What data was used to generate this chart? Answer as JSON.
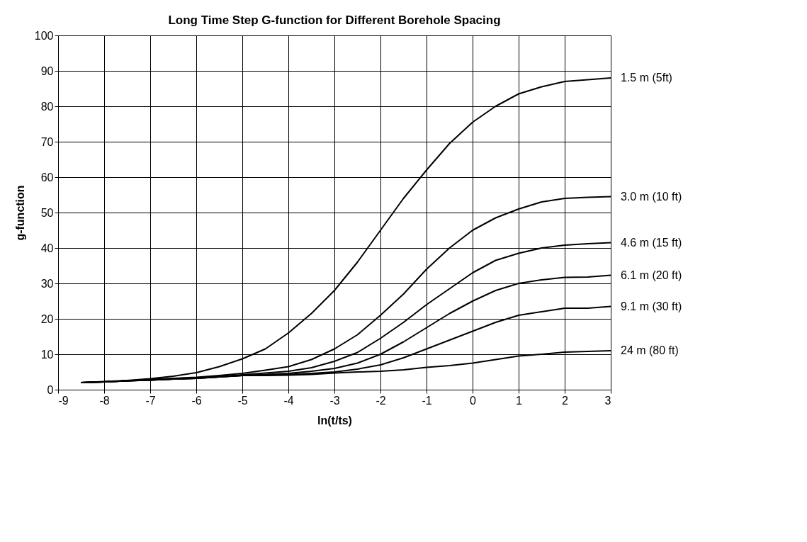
{
  "chart_data": {
    "type": "line",
    "title": "Long Time Step G-function for Different Borehole Spacing",
    "xlabel": "ln(t/ts)",
    "ylabel": "g-function",
    "x": [
      -8.5,
      -8,
      -7.5,
      -7,
      -6.5,
      -6,
      -5.5,
      -5,
      -4.5,
      -4,
      -3.5,
      -3,
      -2.5,
      -2,
      -1.5,
      -1,
      -0.5,
      0,
      0.5,
      1,
      1.5,
      2,
      2.5,
      3
    ],
    "series": [
      {
        "name": "1.5 m (5ft)",
        "color": "#000000",
        "values": [
          2,
          2.3,
          2.6,
          3.1,
          3.8,
          4.8,
          6.5,
          8.7,
          11.5,
          16,
          21.5,
          28,
          36,
          45,
          54,
          62,
          69.5,
          75.5,
          80,
          83.5,
          85.5,
          87,
          87.5,
          88
        ]
      },
      {
        "name": "3.0 m (10 ft)",
        "color": "#000000",
        "values": [
          2,
          2.2,
          2.5,
          2.9,
          3.2,
          3.5,
          4,
          4.6,
          5.5,
          6.5,
          8.5,
          11.5,
          15.5,
          21,
          27,
          34,
          40,
          45,
          48.5,
          51,
          53,
          54,
          54.3,
          54.5
        ]
      },
      {
        "name": "4.6 m (15 ft)",
        "color": "#000000",
        "values": [
          2,
          2.2,
          2.5,
          2.8,
          3,
          3.3,
          3.7,
          4.2,
          4.7,
          5.2,
          6.2,
          8,
          10.5,
          14.5,
          19,
          24,
          28.5,
          33,
          36.5,
          38.5,
          40,
          40.8,
          41.2,
          41.5
        ]
      },
      {
        "name": "6.1 m (20 ft)",
        "color": "#000000",
        "values": [
          2,
          2.2,
          2.5,
          2.7,
          3,
          3.2,
          3.6,
          4,
          4.3,
          4.6,
          5.2,
          6,
          7.5,
          10,
          13.5,
          17.5,
          21.5,
          25,
          28,
          30,
          31,
          31.7,
          31.8,
          32.3
        ]
      },
      {
        "name": "9.1 m (30 ft)",
        "color": "#000000",
        "values": [
          2,
          2.2,
          2.5,
          2.7,
          3,
          3.2,
          3.6,
          4,
          4.1,
          4.3,
          4.6,
          5,
          5.8,
          7,
          9,
          11.5,
          14,
          16.5,
          19,
          21,
          22,
          23,
          23,
          23.5
        ]
      },
      {
        "name": "24 m (80 ft)",
        "color": "#000000",
        "values": [
          2,
          2.2,
          2.5,
          2.7,
          3,
          3.2,
          3.6,
          4,
          4,
          4.1,
          4.3,
          4.7,
          5,
          5.2,
          5.6,
          6.3,
          6.8,
          7.5,
          8.5,
          9.5,
          10,
          10.6,
          10.8,
          11
        ]
      }
    ],
    "xlim": [
      -9,
      3
    ],
    "ylim": [
      0,
      100
    ],
    "xticks": [
      -9,
      -8,
      -7,
      -6,
      -5,
      -4,
      -3,
      -2,
      -1,
      0,
      1,
      2,
      3
    ],
    "yticks": [
      0,
      10,
      20,
      30,
      40,
      50,
      60,
      70,
      80,
      90,
      100
    ],
    "grid": true
  }
}
